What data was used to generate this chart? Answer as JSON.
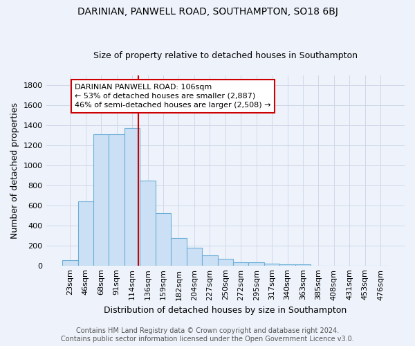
{
  "title": "DARINIAN, PANWELL ROAD, SOUTHAMPTON, SO18 6BJ",
  "subtitle": "Size of property relative to detached houses in Southampton",
  "xlabel": "Distribution of detached houses by size in Southampton",
  "ylabel": "Number of detached properties",
  "footer_line1": "Contains HM Land Registry data © Crown copyright and database right 2024.",
  "footer_line2": "Contains public sector information licensed under the Open Government Licence v3.0.",
  "categories": [
    "23sqm",
    "46sqm",
    "68sqm",
    "91sqm",
    "114sqm",
    "136sqm",
    "159sqm",
    "182sqm",
    "204sqm",
    "227sqm",
    "250sqm",
    "272sqm",
    "295sqm",
    "317sqm",
    "340sqm",
    "363sqm",
    "385sqm",
    "408sqm",
    "431sqm",
    "453sqm",
    "476sqm"
  ],
  "values": [
    55,
    640,
    1310,
    1310,
    1375,
    850,
    525,
    275,
    180,
    105,
    65,
    35,
    35,
    18,
    10,
    10,
    0,
    0,
    0,
    0,
    0
  ],
  "bar_color": "#cce0f5",
  "bar_edge_color": "#6baed6",
  "grid_color": "#d0d8e8",
  "background_color": "#eef3fb",
  "vline_color": "#cc0000",
  "vline_x_index": 4,
  "annotation_text": "DARINIAN PANWELL ROAD: 106sqm\n← 53% of detached houses are smaller (2,887)\n46% of semi-detached houses are larger (2,508) →",
  "ylim": [
    0,
    1900
  ],
  "yticks": [
    0,
    200,
    400,
    600,
    800,
    1000,
    1200,
    1400,
    1600,
    1800
  ],
  "title_fontsize": 10,
  "subtitle_fontsize": 9,
  "ylabel_fontsize": 9,
  "xlabel_fontsize": 9,
  "tick_fontsize": 8,
  "ann_fontsize": 8,
  "footer_fontsize": 7
}
